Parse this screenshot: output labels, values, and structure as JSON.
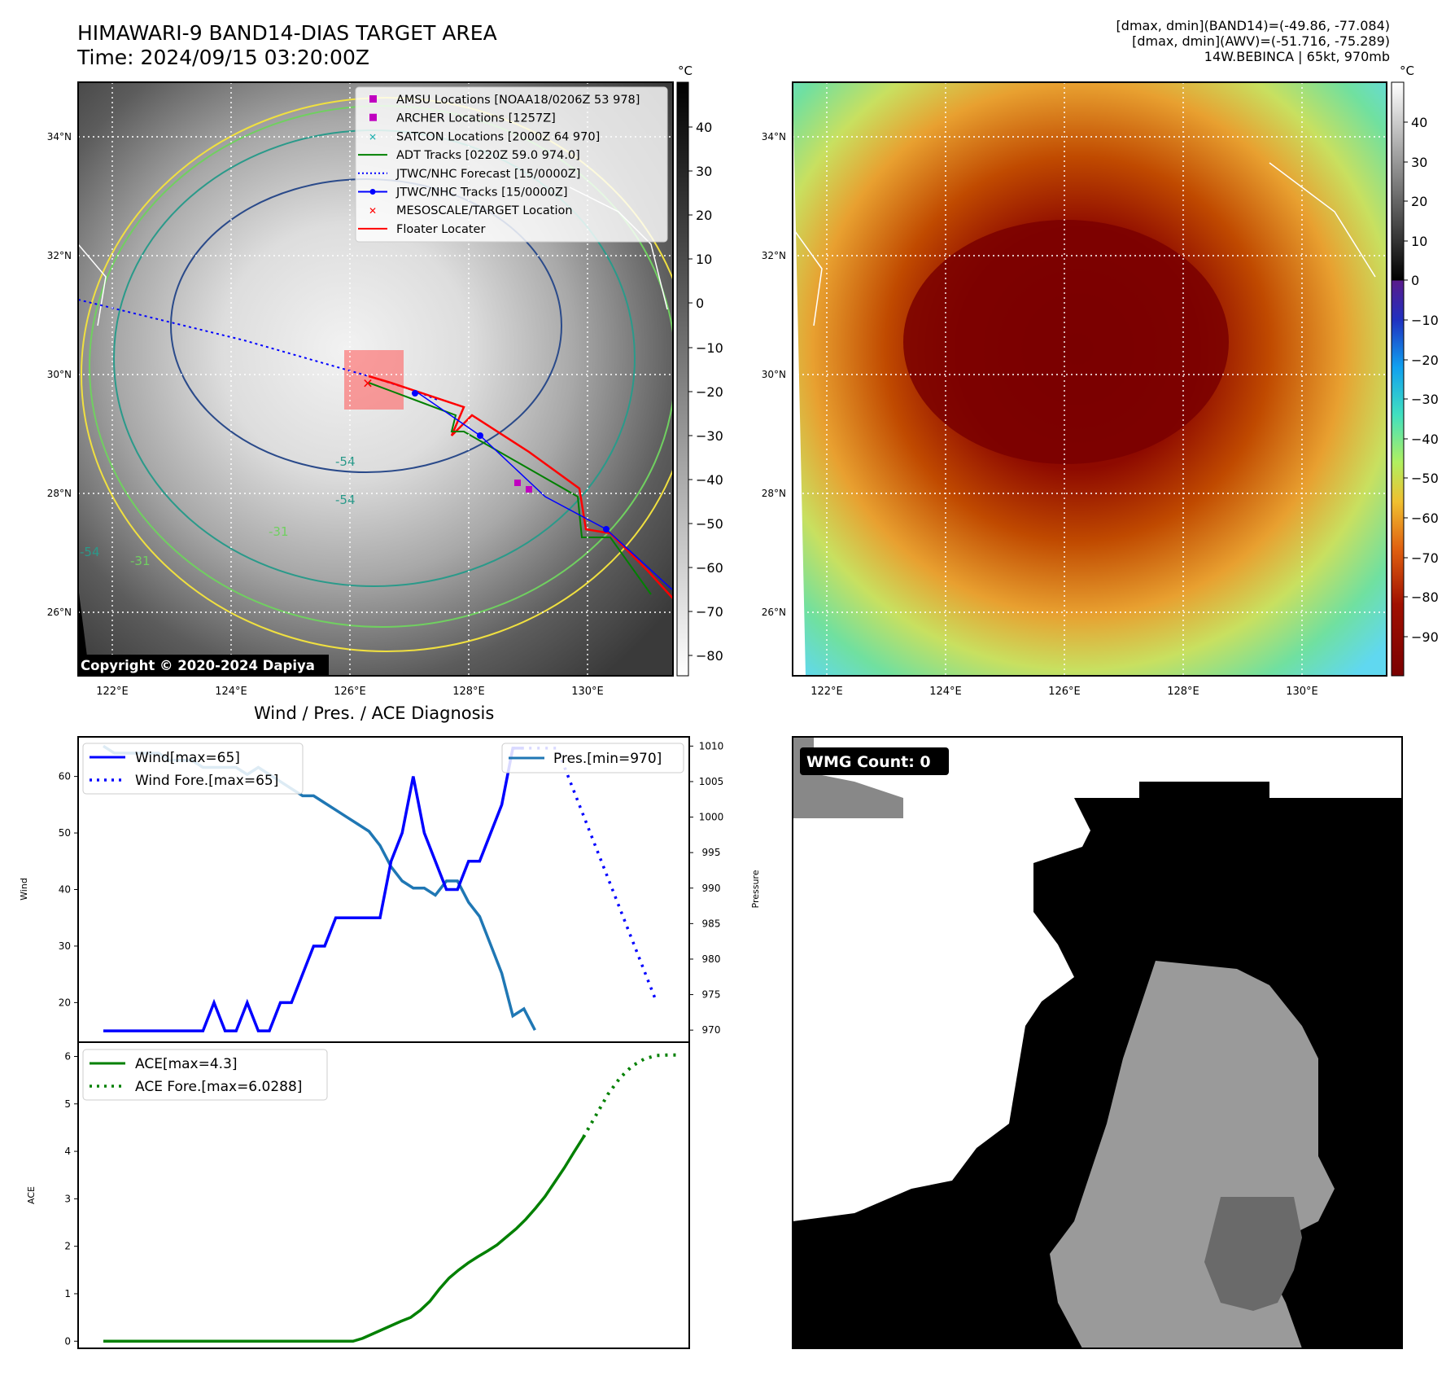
{
  "header": {
    "title_line1": "HIMAWARI-9 BAND14-DIAS TARGET AREA",
    "title_line2": "Time: 2024/09/15 03:20:00Z",
    "info_line1": "[dmax, dmin](BAND14)=(-49.86, -77.084)",
    "info_line2": "[dmax, dmin](AWV)=(-51.716, -75.289)",
    "info_line3": "14W.BEBINCA | 65kt, 970mb"
  },
  "maps": {
    "lat_labels": [
      "34°N",
      "32°N",
      "30°N",
      "28°N",
      "26°N"
    ],
    "lon_labels": [
      "122°E",
      "124°E",
      "126°E",
      "128°E",
      "130°E"
    ],
    "contour_labels": [
      "-54",
      "-54",
      "-54",
      "-31",
      "-31"
    ],
    "copyright": "Copyright © 2020-2024 Dapiya",
    "left_colorbar": {
      "unit": "°C",
      "ticks": [
        "40",
        "30",
        "20",
        "10",
        "0",
        "−10",
        "−20",
        "−30",
        "−40",
        "−50",
        "−60",
        "−70",
        "−80"
      ]
    },
    "right_colorbar": {
      "unit": "°C",
      "ticks": [
        "40",
        "30",
        "20",
        "10",
        "0",
        "−10",
        "−20",
        "−30",
        "−40",
        "−50",
        "−60",
        "−70",
        "−80",
        "−90"
      ]
    },
    "legend": [
      {
        "label": "AMSU Locations [NOAA18/0206Z 53 978]",
        "color": "#c000c0",
        "marker": "square"
      },
      {
        "label": "ARCHER Locations [1257Z]",
        "color": "#c000c0",
        "marker": "square"
      },
      {
        "label": "SATCON Locations [2000Z 64 970]",
        "color": "#20b0b0",
        "marker": "x"
      },
      {
        "label": "ADT Tracks [0220Z 59.0 974.0]",
        "color": "#008000",
        "marker": "line"
      },
      {
        "label": "JTWC/NHC Forecast [15/0000Z]",
        "color": "#0000ff",
        "marker": "dotted"
      },
      {
        "label": "JTWC/NHC Tracks [15/0000Z]",
        "color": "#0000ff",
        "marker": "line-dot"
      },
      {
        "label": "MESOSCALE/TARGET Location",
        "color": "#ff0000",
        "marker": "x"
      },
      {
        "label": "Floater Locater",
        "color": "#ff0000",
        "marker": "line"
      }
    ]
  },
  "diagnosis_title": "Wind / Pres. / ACE Diagnosis",
  "wmg": {
    "label": "WMG Count: 0"
  },
  "chart_data": [
    {
      "type": "line",
      "title": "Wind / Pres. / ACE Diagnosis",
      "ylabel": "Wind",
      "ylim": [
        13,
        67
      ],
      "yticks": [
        20,
        30,
        40,
        50,
        60
      ],
      "y2label": "Pressure",
      "y2lim": [
        968.3,
        1011.3
      ],
      "y2ticks": [
        970,
        975,
        980,
        985,
        990,
        995,
        1000,
        1005,
        1010
      ],
      "series": [
        {
          "name": "Wind[max=65]",
          "axis": "left",
          "color": "#0000ff",
          "style": "solid",
          "values": [
            15,
            15,
            15,
            15,
            15,
            15,
            15,
            15,
            15,
            15,
            20,
            15,
            15,
            20,
            15,
            15,
            20,
            20,
            25,
            30,
            30,
            35,
            35,
            35,
            35,
            35,
            45,
            50,
            60,
            50,
            45,
            40,
            40,
            45,
            45,
            50,
            55,
            65,
            65
          ]
        },
        {
          "name": "Wind Fore.[max=65]",
          "axis": "left",
          "color": "#0000ff",
          "style": "dotted",
          "values": [
            null,
            null,
            null,
            null,
            null,
            null,
            null,
            null,
            null,
            null,
            null,
            null,
            null,
            null,
            null,
            null,
            null,
            null,
            null,
            null,
            null,
            null,
            null,
            null,
            null,
            null,
            null,
            null,
            null,
            null,
            null,
            null,
            null,
            null,
            null,
            null,
            null,
            65,
            65,
            65,
            65,
            65,
            60,
            55,
            50,
            45,
            40,
            35,
            30,
            25,
            20
          ]
        },
        {
          "name": "Pres.[min=970]",
          "axis": "right",
          "color": "#1f77b4",
          "style": "solid",
          "values": [
            1010,
            1009,
            1009,
            1009,
            1009,
            1009,
            1008,
            1008,
            1008,
            1007,
            1007,
            1007,
            1007,
            1006,
            1007,
            1006,
            1005,
            1004,
            1003,
            1003,
            1002,
            1001,
            1000,
            999,
            998,
            996,
            993,
            991,
            990,
            990,
            989,
            991,
            991,
            988,
            986,
            982,
            978,
            972,
            973,
            970
          ]
        }
      ]
    },
    {
      "type": "line",
      "ylabel": "ACE",
      "ylim": [
        -0.15,
        6.3
      ],
      "yticks": [
        0,
        1,
        2,
        3,
        4,
        5,
        6
      ],
      "series": [
        {
          "name": "ACE[max=4.3]",
          "color": "#008000",
          "style": "solid",
          "values": [
            0,
            0,
            0,
            0,
            0,
            0,
            0,
            0,
            0,
            0,
            0,
            0,
            0,
            0,
            0,
            0,
            0,
            0,
            0,
            0,
            0,
            0,
            0,
            0,
            0,
            0,
            0,
            0.06,
            0.15,
            0.24,
            0.33,
            0.42,
            0.5,
            0.65,
            0.84,
            1.1,
            1.33,
            1.5,
            1.65,
            1.78,
            1.9,
            2.03,
            2.2,
            2.37,
            2.57,
            2.8,
            3.05,
            3.35,
            3.65,
            3.98,
            4.3
          ]
        },
        {
          "name": "ACE Fore.[max=6.0288]",
          "color": "#008000",
          "style": "dotted",
          "values": [
            4.3,
            4.75,
            5.2,
            5.55,
            5.8,
            5.95,
            6.02,
            6.03,
            6.03
          ]
        }
      ]
    }
  ]
}
